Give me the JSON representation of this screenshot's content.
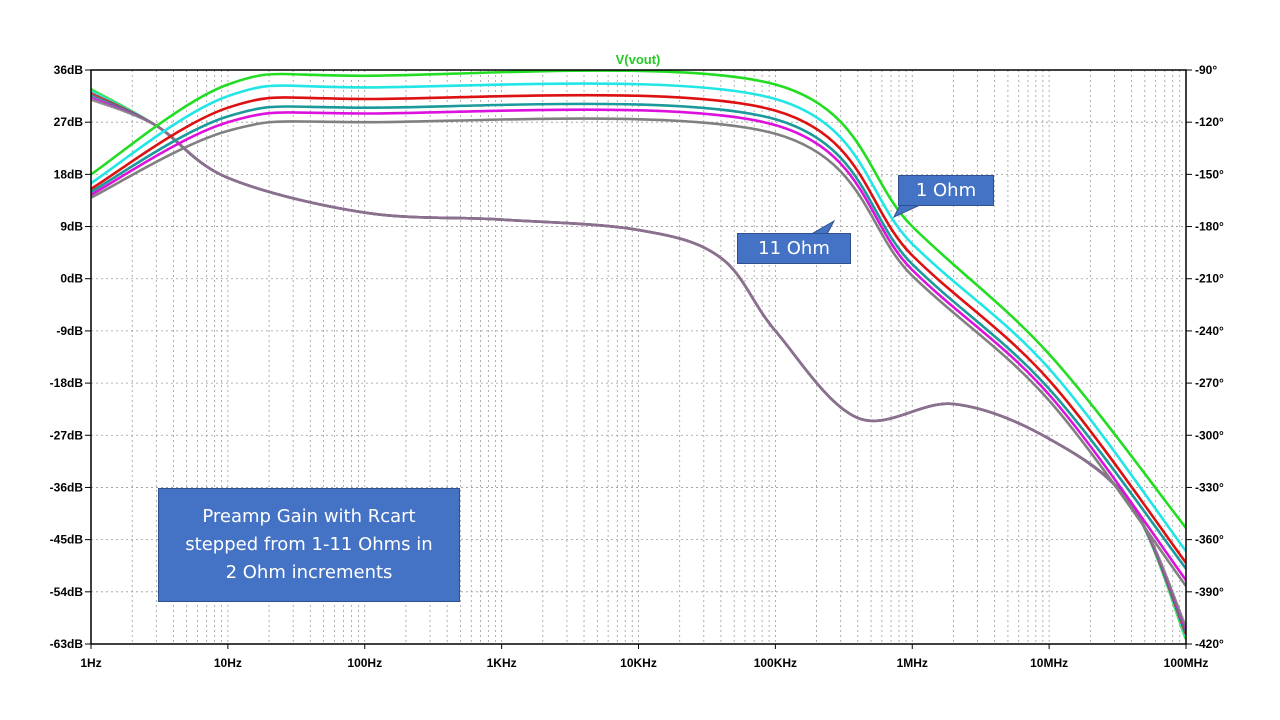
{
  "chart_data": {
    "type": "line",
    "title": "V(vout)",
    "title_color": "#22cc22",
    "x_scale": "log",
    "x_range_hz": [
      1,
      100000000
    ],
    "x_ticks": [
      {
        "value": 1,
        "label": "1Hz"
      },
      {
        "value": 10,
        "label": "10Hz"
      },
      {
        "value": 100,
        "label": "100Hz"
      },
      {
        "value": 1000,
        "label": "1KHz"
      },
      {
        "value": 10000,
        "label": "10KHz"
      },
      {
        "value": 100000,
        "label": "100KHz"
      },
      {
        "value": 1000000,
        "label": "1MHz"
      },
      {
        "value": 10000000,
        "label": "10MHz"
      },
      {
        "value": 100000000,
        "label": "100MHz"
      }
    ],
    "y_left_range_db": [
      -63,
      36
    ],
    "y_left_ticks": [
      {
        "value": 36,
        "label": "36dB"
      },
      {
        "value": 27,
        "label": "27dB"
      },
      {
        "value": 18,
        "label": "18dB"
      },
      {
        "value": 9,
        "label": "9dB"
      },
      {
        "value": 0,
        "label": "0dB"
      },
      {
        "value": -9,
        "label": "-9dB"
      },
      {
        "value": -18,
        "label": "-18dB"
      },
      {
        "value": -27,
        "label": "-27dB"
      },
      {
        "value": -36,
        "label": "-36dB"
      },
      {
        "value": -45,
        "label": "-45dB"
      },
      {
        "value": -54,
        "label": "-54dB"
      },
      {
        "value": -63,
        "label": "-63dB"
      }
    ],
    "y_right_range_deg": [
      -420,
      -90
    ],
    "y_right_ticks": [
      {
        "value": -90,
        "label": "-90°"
      },
      {
        "value": -120,
        "label": "-120°"
      },
      {
        "value": -150,
        "label": "-150°"
      },
      {
        "value": -180,
        "label": "-180°"
      },
      {
        "value": -210,
        "label": "-210°"
      },
      {
        "value": -240,
        "label": "-240°"
      },
      {
        "value": -270,
        "label": "-270°"
      },
      {
        "value": -300,
        "label": "-300°"
      },
      {
        "value": -330,
        "label": "-330°"
      },
      {
        "value": -360,
        "label": "-360°"
      },
      {
        "value": -390,
        "label": "-390°"
      },
      {
        "value": -420,
        "label": "-420°"
      }
    ],
    "grid": true,
    "series": [
      {
        "color": "#22dd22",
        "magnitude": {
          "x": [
            1,
            10,
            100,
            100000,
            1000000,
            10000000,
            100000000
          ],
          "y": [
            18,
            33.5,
            35,
            33.5,
            9,
            -13,
            -43
          ]
        }
      },
      {
        "color": "#22e5e5",
        "magnitude": {
          "x": [
            1,
            10,
            100,
            100000,
            1000000,
            10000000,
            100000000
          ],
          "y": [
            16.5,
            31.5,
            33,
            31,
            6,
            -15.5,
            -47
          ]
        }
      },
      {
        "color": "#dd1111",
        "magnitude": {
          "x": [
            1,
            10,
            100,
            100000,
            1000000,
            10000000,
            100000000
          ],
          "y": [
            15.5,
            29.5,
            31,
            29,
            4,
            -17.5,
            -49
          ]
        }
      },
      {
        "color": "#1a9a9a",
        "magnitude": {
          "x": [
            1,
            10,
            100,
            100000,
            1000000,
            10000000,
            100000000
          ],
          "y": [
            15,
            28,
            29.5,
            27.5,
            2.5,
            -19,
            -50
          ]
        }
      },
      {
        "color": "#dd11dd",
        "magnitude": {
          "x": [
            1,
            10,
            100,
            100000,
            1000000,
            10000000,
            100000000
          ],
          "y": [
            14.5,
            27,
            28.5,
            26.5,
            1.5,
            -20,
            -52
          ]
        }
      },
      {
        "color": "#808080",
        "magnitude": {
          "x": [
            1,
            10,
            100,
            100000,
            1000000,
            10000000,
            100000000
          ],
          "y": [
            14,
            25.5,
            27,
            25,
            0.5,
            -21,
            -53
          ]
        }
      }
    ],
    "phase": {
      "style": "dotted",
      "x": [
        1,
        3,
        10,
        100,
        1000,
        10000,
        40000,
        100000,
        400000,
        2000000,
        10000000,
        40000000,
        100000000
      ],
      "y": [
        -101,
        -122,
        -152,
        -172,
        -176,
        -182,
        -198,
        -240,
        -290,
        -282,
        -302,
        -340,
        -410
      ]
    },
    "annotations": [
      {
        "text": "1 Ohm"
      },
      {
        "text": "11 Ohm"
      },
      {
        "text": "Preamp Gain with Rcart stepped from 1-11 Ohms in 2 Ohm increments"
      }
    ]
  }
}
